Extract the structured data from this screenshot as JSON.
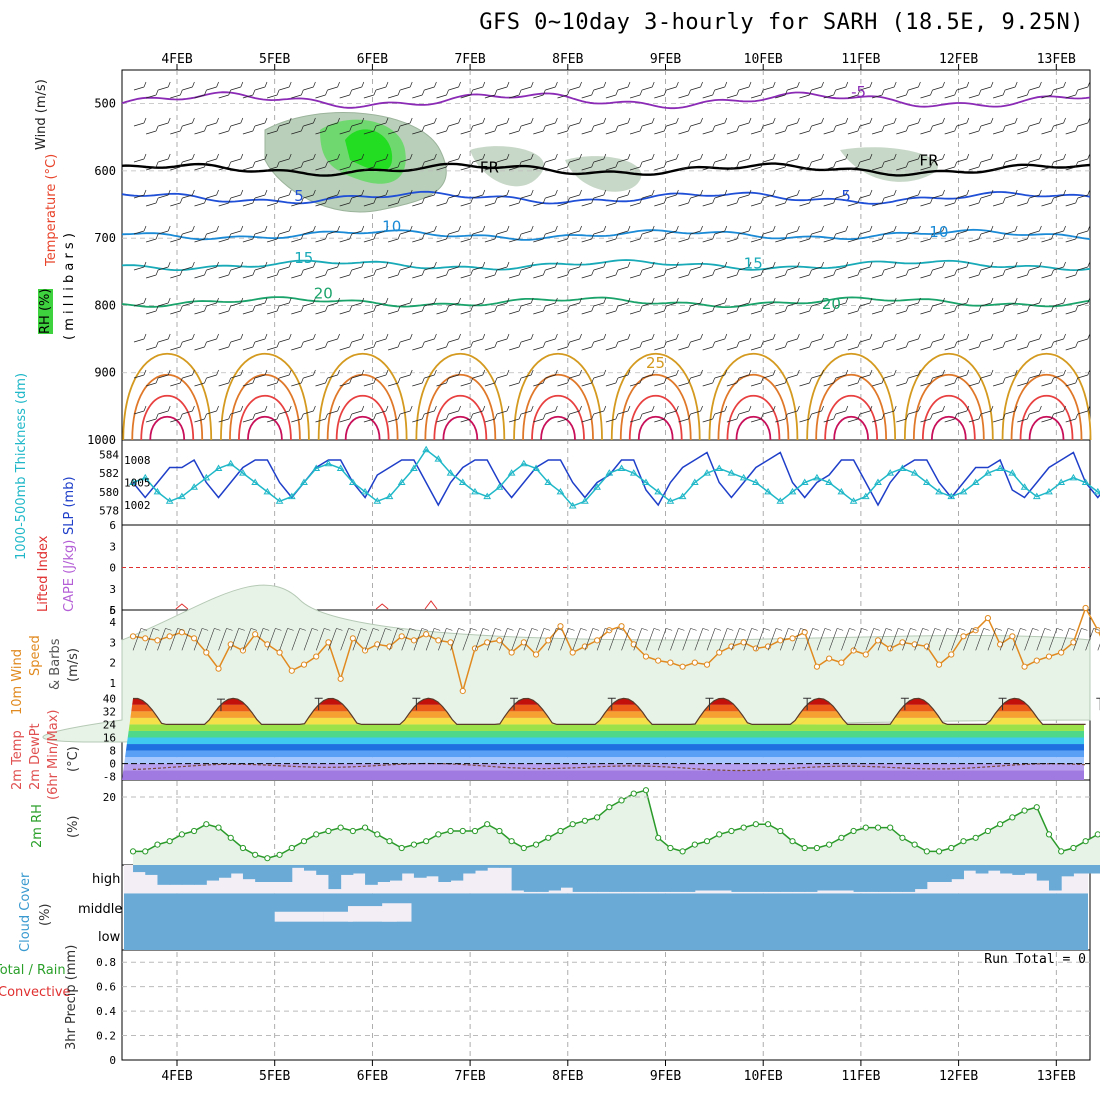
{
  "title": "GFS 0~10day 3-hourly for SARH (18.5E, 9.25N)",
  "date_labels": [
    "4FEB",
    "5FEB",
    "6FEB",
    "7FEB",
    "8FEB",
    "9FEB",
    "10FEB",
    "11FEB",
    "12FEB",
    "13FEB"
  ],
  "panel_labels": {
    "upper": {
      "wind": "Wind (m/s)",
      "temp": "Temperature (°C)",
      "rh": "RH (%)",
      "units": "( m i l l i b a r s )"
    },
    "slp": {
      "thk": "1000-500mb Thickness (dm)",
      "slp": "SLP (mb)"
    },
    "cape": {
      "li": "Lifted Index",
      "cape": "CAPE (J/kg)"
    },
    "wind10": {
      "a": "10m Wind",
      "b": "Speed",
      "c": "& Barbs",
      "d": "(m/s)"
    },
    "temp2m": {
      "a": "2m Temp",
      "b": "2m DewPt",
      "c": "(6hr Min/Max)",
      "d": "(°C)"
    },
    "rh2m": {
      "a": "2m RH",
      "b": "(%)"
    },
    "cloud": {
      "a": "Cloud Cover",
      "b": "(%)",
      "high": "high",
      "middle": "middle",
      "low": "low"
    },
    "precip": {
      "a": "Total / Rain",
      "b": "Convective",
      "c": "3hr Precip (mm)",
      "run_total": "Run Total = 0"
    }
  },
  "colors": {
    "temp_label": "#e8442b",
    "rh_label": "#2aa02a",
    "wind_label": "#222222",
    "slp": "#1f3fc9",
    "thickness": "#20b8c8",
    "cape": "#b45fd6",
    "li": "#e03030",
    "wind10": "#e08a20",
    "cloud": "#6aaad6",
    "rh_fill": "#e6f3e6",
    "rh_line": "#2a9a2a"
  },
  "chart_data": [
    {
      "type": "contour",
      "name_upper": "upper-air",
      "ylabel": "(millibars)",
      "ylim": [
        1000,
        450
      ],
      "yticks": [
        500,
        600,
        700,
        800,
        900,
        1000
      ],
      "contour_labels": [
        {
          "t": "-5",
          "day": 6.9,
          "p": 490,
          "c": "#8a2ab5"
        },
        {
          "t": "FR",
          "day": 3.1,
          "p": 602,
          "c": "#000"
        },
        {
          "t": "FR",
          "day": 7.6,
          "p": 592,
          "c": "#000"
        },
        {
          "t": "5",
          "day": 1.2,
          "p": 645,
          "c": "#1f4fd6"
        },
        {
          "t": "5",
          "day": 6.8,
          "p": 645,
          "c": "#1f4fd6"
        },
        {
          "t": "10",
          "day": 2.1,
          "p": 690,
          "c": "#1a8ad6"
        },
        {
          "t": "10",
          "day": 7.7,
          "p": 698,
          "c": "#1a8ad6"
        },
        {
          "t": "15",
          "day": 1.2,
          "p": 737,
          "c": "#19aab8"
        },
        {
          "t": "15",
          "day": 5.8,
          "p": 745,
          "c": "#19aab8"
        },
        {
          "t": "20",
          "day": 1.4,
          "p": 790,
          "c": "#1aa36a"
        },
        {
          "t": "20",
          "day": 6.6,
          "p": 805,
          "c": "#1aa36a"
        },
        {
          "t": "25",
          "day": 4.8,
          "p": 893,
          "c": "#d49a20"
        }
      ],
      "levels": [
        {
          "name": "-5",
          "color": "#8a2ab5",
          "base": 495,
          "amp": 8
        },
        {
          "name": "FR",
          "color": "#000000",
          "base": 598,
          "amp": 6
        },
        {
          "name": "5",
          "color": "#1f4fd6",
          "base": 640,
          "amp": 6
        },
        {
          "name": "10",
          "color": "#1a8ad6",
          "base": 695,
          "amp": 5
        },
        {
          "name": "15",
          "color": "#19aab8",
          "base": 740,
          "amp": 5
        },
        {
          "name": "20",
          "color": "#1aa36a",
          "base": 795,
          "amp": 5
        }
      ]
    },
    {
      "type": "line",
      "name": "slp-thickness",
      "x_start_day": 0,
      "x_step_hours": 3,
      "series": [
        {
          "name": "SLP (mb)",
          "axis": "right",
          "ylim": [
            1000,
            1010
          ],
          "values": [
            1005,
            1003,
            1005,
            1007,
            1007,
            1008,
            1005,
            1003,
            1005,
            1007,
            1008,
            1008,
            1005,
            1003,
            1005,
            1007,
            1008,
            1008,
            1005,
            1003,
            1006,
            1007,
            1008,
            1008,
            1005,
            1002,
            1005,
            1007,
            1008,
            1008,
            1005,
            1003,
            1005,
            1007,
            1008,
            1008,
            1005,
            1003,
            1005,
            1006,
            1008,
            1008,
            1004,
            1002,
            1005,
            1007,
            1008,
            1009,
            1005,
            1003,
            1005,
            1007,
            1008,
            1009,
            1005,
            1003,
            1005,
            1006,
            1008,
            1008,
            1005,
            1002,
            1005,
            1007,
            1008,
            1008,
            1005,
            1003,
            1005,
            1007,
            1007,
            1008,
            1004,
            1003,
            1005,
            1007,
            1008,
            1009,
            1005,
            1003,
            1005
          ]
        },
        {
          "name": "1000-500mb Thickness (dm)",
          "axis": "left",
          "ylim": [
            577,
            585
          ],
          "values": [
            581,
            581.5,
            580,
            579,
            579.5,
            580.5,
            581.5,
            582.5,
            583,
            582,
            581,
            580,
            579,
            579.5,
            581,
            582.5,
            583,
            582.5,
            581,
            580,
            579,
            579.5,
            581,
            582.5,
            584.5,
            583.5,
            582,
            581,
            580,
            579.5,
            580.5,
            582,
            583,
            582.5,
            581,
            580,
            578.5,
            579,
            580.5,
            582,
            582.5,
            582,
            581,
            580,
            579,
            579.5,
            581,
            582,
            582.5,
            582,
            581.5,
            581,
            580,
            579,
            580,
            581,
            581.5,
            581,
            580,
            579,
            579.5,
            581,
            582,
            582.5,
            582,
            581,
            580,
            579.5,
            580,
            581,
            582,
            582.5,
            582,
            580.5,
            579.5,
            580,
            581,
            581.5,
            581,
            580,
            579
          ]
        }
      ],
      "yticks_left": [
        578,
        580,
        582,
        584
      ],
      "yticks_right": [
        1002,
        1005,
        1008
      ]
    },
    {
      "type": "line",
      "name": "cape-li",
      "ylim": [
        6,
        -6
      ],
      "yticks": [
        -6,
        -3,
        0,
        3,
        6
      ],
      "yticks_right_label": "5",
      "li_zero_line": 0,
      "cape_blips": [
        {
          "day": 0.05,
          "v": 1
        },
        {
          "day": 2.1,
          "v": 1
        },
        {
          "day": 2.6,
          "v": 1.6
        }
      ]
    },
    {
      "type": "line",
      "name": "wind10",
      "ylim": [
        0.5,
        4.5
      ],
      "yticks": [
        1,
        2,
        3,
        4
      ],
      "values": [
        3.3,
        3.2,
        3.1,
        3.3,
        3.5,
        3.2,
        2.5,
        1.7,
        2.9,
        2.6,
        3.4,
        2.9,
        2.5,
        1.6,
        1.9,
        2.3,
        3.0,
        1.2,
        3.2,
        2.6,
        2.9,
        2.8,
        3.3,
        3.1,
        3.4,
        3.1,
        3.0,
        0.6,
        2.7,
        3.0,
        3.1,
        2.5,
        3.0,
        2.4,
        3.1,
        3.8,
        2.5,
        2.8,
        3.1,
        3.6,
        3.8,
        2.9,
        2.3,
        2.1,
        2.0,
        1.8,
        2.0,
        1.9,
        2.5,
        2.8,
        3.0,
        2.7,
        2.8,
        3.1,
        3.2,
        3.5,
        1.8,
        2.2,
        2.0,
        2.6,
        2.4,
        3.1,
        2.7,
        3.0,
        2.9,
        2.8,
        1.9,
        2.4,
        3.3,
        3.6,
        4.2,
        2.9,
        3.3,
        1.8,
        2.1,
        2.3,
        2.5,
        3.0,
        4.7,
        3.6,
        2.3
      ]
    },
    {
      "type": "area",
      "name": "temp2m",
      "ylim": [
        -10,
        42
      ],
      "yticks": [
        -8,
        0,
        8,
        16,
        24,
        32,
        40
      ],
      "tmax_daily": [
        39.5,
        40,
        40,
        40,
        40,
        40,
        40,
        40,
        40,
        40
      ],
      "tmin_daily": [
        24,
        24,
        24,
        23,
        24,
        24,
        24,
        24,
        24,
        24
      ]
    },
    {
      "type": "area",
      "name": "rh2m",
      "ylim": [
        0,
        25
      ],
      "yticks": [
        20
      ],
      "values": [
        4,
        4,
        6,
        7,
        9,
        10,
        12,
        11,
        8,
        5,
        3,
        2,
        3,
        5,
        7,
        9,
        10,
        11,
        10,
        11,
        9,
        7,
        5,
        6,
        7,
        9,
        10,
        10,
        10,
        12,
        10,
        7,
        5,
        6,
        8,
        10,
        12,
        13,
        14,
        17,
        19,
        21,
        22,
        8,
        5,
        4,
        6,
        7,
        9,
        10,
        11,
        12,
        12,
        10,
        7,
        5,
        5,
        6,
        8,
        10,
        11,
        11,
        11,
        8,
        6,
        4,
        4,
        5,
        7,
        8,
        10,
        12,
        14,
        16,
        17,
        9,
        4,
        5,
        7,
        9,
        11,
        13,
        14
      ]
    },
    {
      "type": "bar",
      "name": "cloud",
      "rows": [
        "high",
        "middle",
        "low"
      ],
      "high_cover": [
        0.25,
        0.35,
        0.7,
        0.7,
        0.7,
        0.7,
        0.55,
        0.45,
        0.3,
        0.5,
        0.6,
        0.6,
        0.6,
        0.1,
        0.2,
        0.35,
        0.85,
        0.35,
        0.3,
        0.7,
        0.6,
        0.55,
        0.3,
        0.45,
        0.4,
        0.6,
        0.55,
        0.3,
        0.2,
        0.1,
        0.1,
        0.9,
        0.95,
        0.95,
        0.9,
        0.8,
        0.95,
        0.95,
        0.95,
        0.95,
        0.95,
        0.95,
        0.95,
        0.95,
        0.95,
        0.95,
        0.9,
        0.9,
        0.9,
        0.95,
        0.95,
        0.95,
        0.95,
        0.95,
        0.95,
        0.95,
        0.9,
        0.9,
        0.9,
        0.95,
        0.95,
        0.95,
        0.95,
        0.95,
        0.85,
        0.6,
        0.6,
        0.5,
        0.2,
        0.3,
        0.2,
        0.3,
        0.35,
        0.3,
        0.55,
        0.9,
        0.4,
        0.3,
        0.3,
        0.3,
        0.3,
        0.3,
        0.4
      ],
      "mid_gaps": [
        {
          "day": 1.0,
          "len": 0.5,
          "d": 0.05
        },
        {
          "day": 1.5,
          "len": 0.3,
          "d": 0.05
        },
        {
          "day": 1.75,
          "len": 0.5,
          "d": 0.25
        },
        {
          "day": 2.1,
          "len": 0.3,
          "d": 0.35
        }
      ]
    },
    {
      "type": "bar",
      "name": "precip",
      "ylim": [
        0,
        0.9
      ],
      "yticks": [
        0,
        0.2,
        0.4,
        0.6,
        0.8
      ],
      "values": [],
      "run_total": 0
    }
  ]
}
